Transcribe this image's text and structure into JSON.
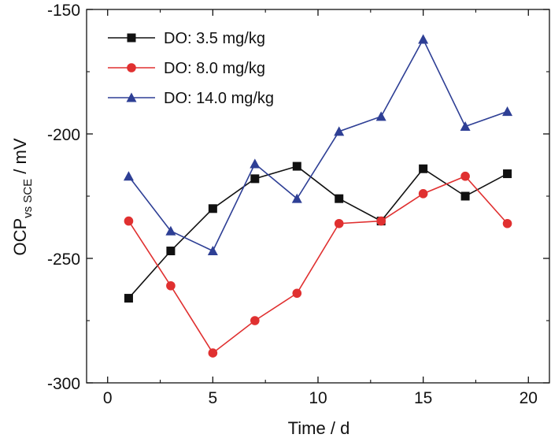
{
  "chart_data": {
    "type": "line",
    "title": "",
    "xlabel": "Time / d",
    "ylabel_main": "OCP",
    "ylabel_sub": "vs SCE",
    "ylabel_unit": " / mV",
    "xlim": [
      -1,
      21
    ],
    "ylim": [
      -300,
      -150
    ],
    "xticks": [
      0,
      5,
      10,
      15,
      20
    ],
    "yticks": [
      -300,
      -250,
      -200,
      -150
    ],
    "x": [
      1,
      3,
      5,
      7,
      9,
      11,
      13,
      15,
      17,
      19
    ],
    "series": [
      {
        "name": "DO: 3.5 mg/kg",
        "color": "#111111",
        "marker": "square",
        "values": [
          -266,
          -247,
          -230,
          -218,
          -213,
          -226,
          -235,
          -214,
          -225,
          -216
        ]
      },
      {
        "name": "DO: 8.0 mg/kg",
        "color": "#e03030",
        "marker": "circle",
        "values": [
          -235,
          -261,
          -288,
          -275,
          -264,
          -236,
          -235,
          -224,
          -217,
          -236
        ]
      },
      {
        "name": "DO: 14.0 mg/kg",
        "color": "#2e3f95",
        "marker": "triangle",
        "values": [
          -217,
          -239,
          -247,
          -212,
          -226,
          -199,
          -193,
          -162,
          -197,
          -191
        ]
      }
    ],
    "legend_position": "top-left",
    "grid": false
  }
}
